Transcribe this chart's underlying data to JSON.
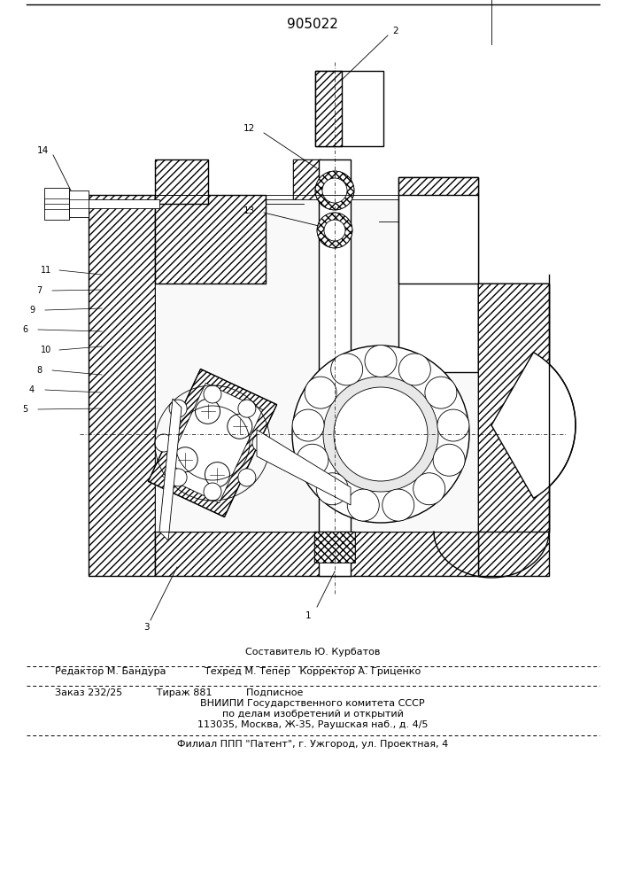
{
  "title_number": "905022",
  "editor_line": "Редактор М. Бандура",
  "compiler_line": "Составитель Ю. Курбатов",
  "techred_line": "Техред М. Тепер   Корректор А. Гриценко",
  "order_line": "Заказ 232/25           Тираж 881           Подписное",
  "vniiipi_line1": "ВНИИПИ Государственного комитета СССР",
  "vniiipi_line2": "по делам изобретений и открытий",
  "vniiipi_line3": "113035, Москва, Ж-35, Раушская наб., д. 4/5",
  "filial_line": "Филиал ППП \"Патент\", г. Ужгород, ул. Проектная, 4",
  "bg_color": "#ffffff",
  "text_color": "#000000",
  "font_size_title": 11,
  "font_size_footer": 8.0,
  "lw_main": 1.0,
  "lw_thin": 0.6,
  "lw_thick": 1.5,
  "hatch_density": "////",
  "label_fontsize": 7.5
}
